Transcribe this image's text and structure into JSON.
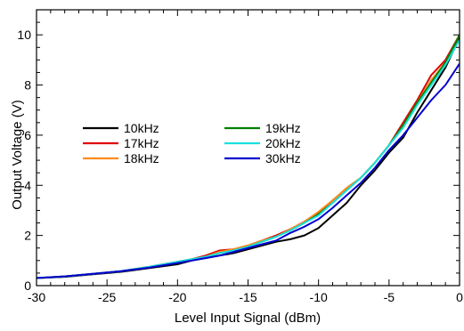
{
  "chart_data": {
    "type": "line",
    "title": "",
    "xlabel": "Level Input Signal (dBm)",
    "ylabel": "Output Voltage (V)",
    "xlim": [
      -30,
      0
    ],
    "ylim": [
      0,
      11
    ],
    "xticks": [
      -30,
      -25,
      -20,
      -15,
      -10,
      -5,
      0
    ],
    "yticks": [
      0,
      2,
      4,
      6,
      8,
      10
    ],
    "grid": false,
    "legend_position": "middle-left, two columns",
    "series": [
      {
        "name": "10kHz",
        "color": "#000000",
        "x": [
          -30,
          -28,
          -26,
          -24,
          -22,
          -20,
          -19,
          -18,
          -17,
          -16,
          -15,
          -14,
          -13,
          -12,
          -11,
          -10,
          -9,
          -8,
          -7,
          -6,
          -5,
          -4,
          -3,
          -2,
          -1,
          0
        ],
        "y": [
          0.3,
          0.35,
          0.45,
          0.55,
          0.7,
          0.85,
          1.0,
          1.1,
          1.2,
          1.3,
          1.45,
          1.6,
          1.75,
          1.85,
          2.0,
          2.3,
          2.8,
          3.3,
          4.0,
          4.6,
          5.3,
          5.9,
          6.9,
          7.8,
          8.7,
          9.9
        ]
      },
      {
        "name": "17kHz",
        "color": "#e00000",
        "x": [
          -30,
          -28,
          -26,
          -24,
          -22,
          -20,
          -19,
          -18,
          -17,
          -16,
          -15,
          -14,
          -13,
          -12,
          -11,
          -10,
          -9,
          -8,
          -7,
          -6,
          -5,
          -4,
          -3,
          -2,
          -1,
          0
        ],
        "y": [
          0.3,
          0.37,
          0.47,
          0.58,
          0.75,
          0.95,
          1.05,
          1.2,
          1.4,
          1.45,
          1.6,
          1.8,
          2.0,
          2.25,
          2.55,
          2.9,
          3.4,
          3.85,
          4.3,
          4.9,
          5.6,
          6.5,
          7.4,
          8.4,
          9.0,
          10.0
        ]
      },
      {
        "name": "18kHz",
        "color": "#ff8c1a",
        "x": [
          -30,
          -28,
          -26,
          -24,
          -22,
          -20,
          -19,
          -18,
          -17,
          -16,
          -15,
          -14,
          -13,
          -12,
          -11,
          -10,
          -9,
          -8,
          -7,
          -6,
          -5,
          -4,
          -3,
          -2,
          -1,
          0
        ],
        "y": [
          0.3,
          0.37,
          0.47,
          0.58,
          0.75,
          0.95,
          1.05,
          1.15,
          1.35,
          1.45,
          1.6,
          1.8,
          1.95,
          2.25,
          2.55,
          2.95,
          3.4,
          3.9,
          4.3,
          4.9,
          5.6,
          6.4,
          7.3,
          8.2,
          8.9,
          10.0
        ]
      },
      {
        "name": "19kHz",
        "color": "#008000",
        "x": [
          -30,
          -28,
          -26,
          -24,
          -22,
          -20,
          -19,
          -18,
          -17,
          -16,
          -15,
          -14,
          -13,
          -12,
          -11,
          -10,
          -9,
          -8,
          -7,
          -6,
          -5,
          -4,
          -3,
          -2,
          -1,
          0
        ],
        "y": [
          0.3,
          0.37,
          0.47,
          0.58,
          0.75,
          0.95,
          1.05,
          1.15,
          1.3,
          1.4,
          1.55,
          1.75,
          1.95,
          2.2,
          2.5,
          2.85,
          3.3,
          3.8,
          4.3,
          4.9,
          5.6,
          6.4,
          7.3,
          8.1,
          8.9,
          10.0
        ]
      },
      {
        "name": "20kHz",
        "color": "#1ae0e0",
        "x": [
          -30,
          -28,
          -26,
          -24,
          -22,
          -20,
          -19,
          -18,
          -17,
          -16,
          -15,
          -14,
          -13,
          -12,
          -11,
          -10,
          -9,
          -8,
          -7,
          -6,
          -5,
          -4,
          -3,
          -2,
          -1,
          0
        ],
        "y": [
          0.3,
          0.37,
          0.47,
          0.58,
          0.75,
          0.95,
          1.05,
          1.15,
          1.3,
          1.4,
          1.55,
          1.75,
          1.95,
          2.2,
          2.5,
          2.8,
          3.3,
          3.8,
          4.3,
          4.9,
          5.6,
          6.3,
          7.2,
          8.0,
          8.8,
          9.8
        ]
      },
      {
        "name": "30kHz",
        "color": "#0000d0",
        "x": [
          -30,
          -28,
          -26,
          -24,
          -22,
          -20,
          -19,
          -18,
          -17,
          -16,
          -15,
          -14,
          -13,
          -12,
          -11,
          -10,
          -9,
          -8,
          -7,
          -6,
          -5,
          -4,
          -3,
          -2,
          -1,
          0
        ],
        "y": [
          0.3,
          0.37,
          0.47,
          0.58,
          0.72,
          0.9,
          1.0,
          1.1,
          1.2,
          1.35,
          1.5,
          1.65,
          1.8,
          2.1,
          2.35,
          2.65,
          3.1,
          3.6,
          4.1,
          4.7,
          5.4,
          6.0,
          6.7,
          7.4,
          8.0,
          8.85
        ]
      }
    ]
  }
}
